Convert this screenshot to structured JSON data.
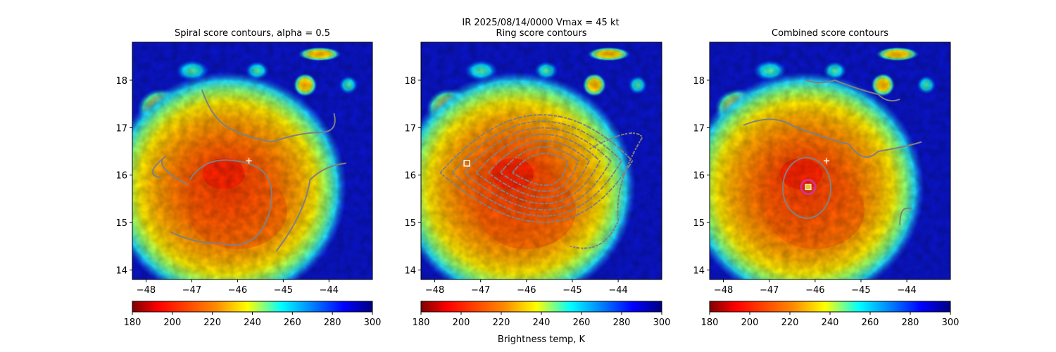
{
  "figure": {
    "suptitle_line1": "IR  2025/08/14/0000    Vmax = 45 kt",
    "colorbar_label": "Brightness temp, K"
  },
  "colors": {
    "contour": "#808080",
    "marker_white": "#ffffff",
    "center_ring": "#d6338a",
    "center_square": "#e8c13a",
    "background_cold": "#0a14c8",
    "colormap": [
      "#800000",
      "#ff0000",
      "#ff8000",
      "#ffff00",
      "#80ff80",
      "#00ffff",
      "#0080ff",
      "#0000ff",
      "#000080"
    ]
  },
  "chart_data": [
    {
      "type": "heatmap",
      "title": "Spiral score contours, alpha =  0.5",
      "xlim": [
        -48.3,
        -43.05
      ],
      "ylim": [
        13.8,
        18.8
      ],
      "xticks": [
        -48,
        -47,
        -46,
        -45,
        -44
      ],
      "yticks": [
        14,
        15,
        16,
        17,
        18
      ],
      "storm_center": [
        -46.15,
        15.85
      ],
      "markers": [
        {
          "kind": "plus",
          "x": -45.75,
          "y": 16.3
        }
      ],
      "colorbar": {
        "min": 180,
        "max": 300,
        "ticks": [
          180,
          200,
          220,
          240,
          260,
          280,
          300
        ]
      }
    },
    {
      "type": "heatmap",
      "title": "Ring score contours",
      "xlim": [
        -48.3,
        -43.05
      ],
      "ylim": [
        13.8,
        18.8
      ],
      "xticks": [
        -48,
        -47,
        -46,
        -45,
        -44
      ],
      "yticks": [
        14,
        15,
        16,
        17,
        18
      ],
      "storm_center": [
        -46.15,
        15.85
      ],
      "markers": [
        {
          "kind": "square",
          "x": -47.3,
          "y": 16.25
        }
      ],
      "colorbar": {
        "min": 180,
        "max": 300,
        "ticks": [
          180,
          200,
          220,
          240,
          260,
          280,
          300
        ]
      }
    },
    {
      "type": "heatmap",
      "title": "Combined score contours",
      "xlim": [
        -48.3,
        -43.05
      ],
      "ylim": [
        13.8,
        18.8
      ],
      "xticks": [
        -48,
        -47,
        -46,
        -45,
        -44
      ],
      "yticks": [
        14,
        15,
        16,
        17,
        18
      ],
      "storm_center": [
        -46.15,
        15.85
      ],
      "markers": [
        {
          "kind": "plus",
          "x": -45.75,
          "y": 16.3
        },
        {
          "kind": "ring-square",
          "x": -46.15,
          "y": 15.75
        }
      ],
      "colorbar": {
        "min": 180,
        "max": 300,
        "ticks": [
          180,
          200,
          220,
          240,
          260,
          280,
          300
        ]
      }
    }
  ]
}
